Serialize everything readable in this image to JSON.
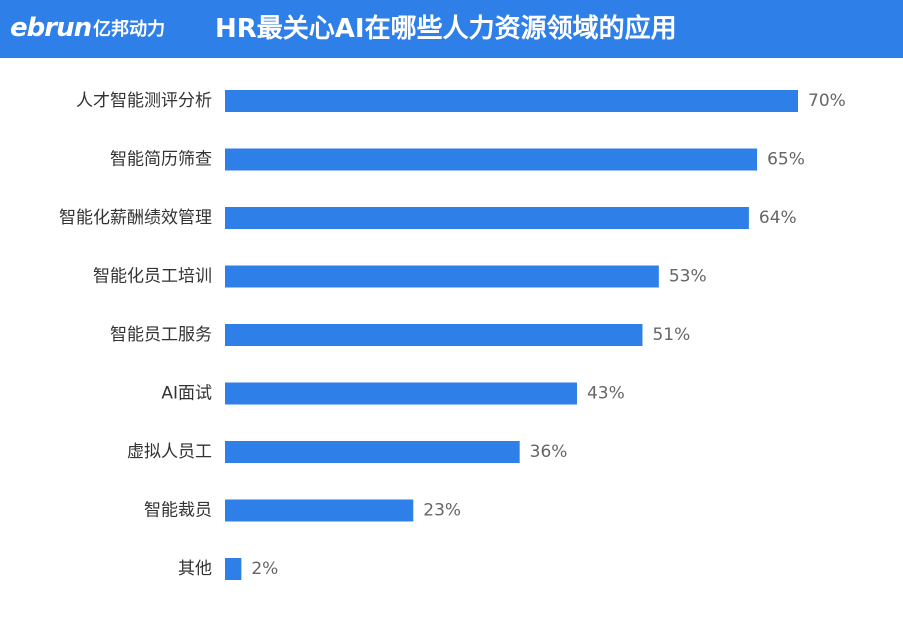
{
  "header": {
    "logo_latin": "ebrun",
    "logo_cn": "亿邦动力",
    "title": "HR最关心AI在哪些人力资源领域的应用"
  },
  "colors": {
    "header_bg": "#2f7fe8",
    "bar": "#2f7fe8",
    "label_text": "#333333",
    "value_text": "#666666"
  },
  "chart_data": {
    "type": "bar",
    "orientation": "horizontal",
    "title": "HR最关心AI在哪些人力资源领域的应用",
    "categories": [
      "人才智能测评分析",
      "智能简历筛查",
      "智能化薪酬绩效管理",
      "智能化员工培训",
      "智能员工服务",
      "AI面试",
      "虚拟人员工",
      "智能裁员",
      "其他"
    ],
    "values": [
      70,
      65,
      64,
      53,
      51,
      43,
      36,
      23,
      2
    ],
    "value_labels": [
      "70%",
      "65%",
      "64%",
      "53%",
      "51%",
      "43%",
      "36%",
      "23%",
      "2%"
    ],
    "unit": "%",
    "xlim": [
      0,
      70
    ],
    "grid": false,
    "legend": "none"
  }
}
